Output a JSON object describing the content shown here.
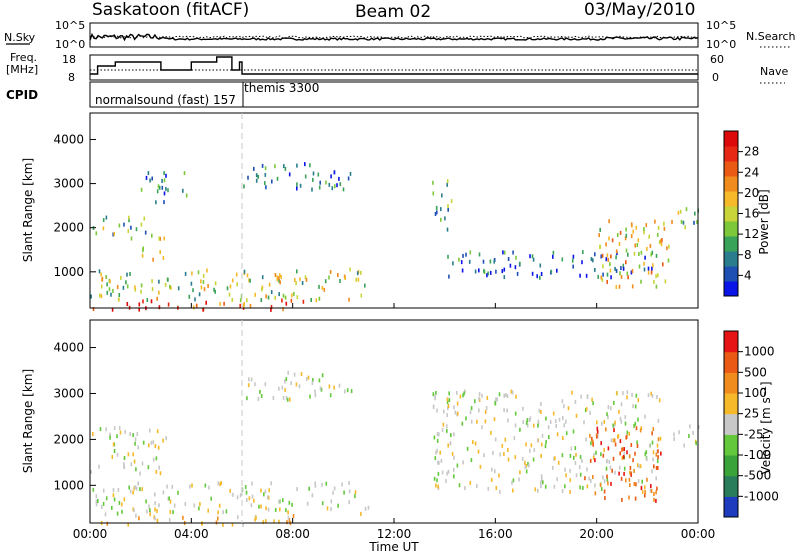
{
  "header": {
    "title": "Saskatoon (fitACF)",
    "beam": "Beam 02",
    "date": "03/May/2010"
  },
  "top_panels": {
    "nsky_label": "N.Sky",
    "nsky_ticks": [
      "10^5",
      "10^0"
    ],
    "nsky_right_ticks": [
      "10^5",
      "10^0"
    ],
    "nsearch_label": "N.Search",
    "freq_label_1": "Freq.",
    "freq_label_2": "[MHz]",
    "freq_ticks": [
      "18",
      "8"
    ],
    "nave_ticks": [
      "60",
      "0"
    ],
    "nave_label": "Nave",
    "cpid_label": "CPID",
    "cpid_mode_1": "normalsound (fast) 157",
    "cpid_mode_2": "themis 3300"
  },
  "chart_data": [
    {
      "type": "heatmap",
      "title": "",
      "quantity": "Power",
      "ylabel": "Slant Range [km]",
      "xlabel": "Time UT",
      "ylim": [
        180,
        4600
      ],
      "y_ticks": [
        "1000",
        "2000",
        "3000",
        "4000"
      ],
      "x_ticks": [
        "00:00",
        "04:00",
        "08:00",
        "12:00",
        "16:00",
        "20:00",
        "00:00"
      ],
      "colorbar": {
        "label": "Power [dB]",
        "tick_labels": [
          "4",
          "8",
          "12",
          "16",
          "20",
          "24",
          "28"
        ],
        "colors": [
          "#0a14e6",
          "#1e50b4",
          "#2a7d8c",
          "#3aa35a",
          "#7cc83a",
          "#c8d43a",
          "#f5b92a",
          "#f08c1e",
          "#eb5a14",
          "#e62814",
          "#dc0a0a"
        ]
      },
      "echo_regions": [
        {
          "t": [
            0.0,
            2.8
          ],
          "range_km": [
            180,
            400
          ],
          "level": 0.9
        },
        {
          "t": [
            2.8,
            8.5
          ],
          "range_km": [
            180,
            400
          ],
          "level": 0.8
        },
        {
          "t": [
            0.0,
            11.0
          ],
          "range_km": [
            400,
            1100
          ],
          "level": 0.45
        },
        {
          "t": [
            0.0,
            2.2
          ],
          "range_km": [
            1800,
            2300
          ],
          "level": 0.35
        },
        {
          "t": [
            2.0,
            3.0
          ],
          "range_km": [
            1300,
            1900
          ],
          "level": 0.6
        },
        {
          "t": [
            2.0,
            3.8
          ],
          "range_km": [
            2600,
            3300
          ],
          "level": 0.2
        },
        {
          "t": [
            6.0,
            10.3
          ],
          "range_km": [
            2900,
            3500
          ],
          "level": 0.15
        },
        {
          "t": [
            13.5,
            14.3
          ],
          "range_km": [
            2000,
            3100
          ],
          "level": 0.3
        },
        {
          "t": [
            14.0,
            22.5
          ],
          "range_km": [
            900,
            1500
          ],
          "level": 0.15
        },
        {
          "t": [
            20.0,
            23.0
          ],
          "range_km": [
            700,
            2200
          ],
          "level": 0.55
        },
        {
          "t": [
            23.0,
            24.0
          ],
          "range_km": [
            1900,
            2500
          ],
          "level": 0.35
        }
      ]
    },
    {
      "type": "heatmap",
      "title": "",
      "quantity": "Velocity",
      "ylabel": "Slant Range [km]",
      "xlabel": "Time UT",
      "ylim": [
        180,
        4600
      ],
      "y_ticks": [
        "1000",
        "2000",
        "3000",
        "4000"
      ],
      "x_ticks": [
        "00:00",
        "04:00",
        "08:00",
        "12:00",
        "16:00",
        "20:00",
        "00:00"
      ],
      "colorbar": {
        "label": "Velocity [m s⁻¹]",
        "tick_labels": [
          "1000",
          "500",
          "100",
          "25",
          "-25",
          "-100",
          "-500",
          "-1000"
        ],
        "colors": [
          "#1e3cbe",
          "#2a7d5a",
          "#3aa33a",
          "#64c83c",
          "#c8c8c8",
          "#f5b92a",
          "#f08c1e",
          "#eb5a14",
          "#e61414"
        ]
      },
      "echo_regions": [
        {
          "t": [
            0.0,
            8.5
          ],
          "range_km": [
            180,
            400
          ],
          "velocity_ms": -100
        },
        {
          "t": [
            0.0,
            11.0
          ],
          "range_km": [
            400,
            1100
          ],
          "velocity_ms": 25
        },
        {
          "t": [
            0.0,
            3.0
          ],
          "range_km": [
            1300,
            2300
          ],
          "velocity_ms": 0
        },
        {
          "t": [
            6.0,
            10.3
          ],
          "range_km": [
            2900,
            3500
          ],
          "velocity_ms": 0
        },
        {
          "t": [
            13.5,
            22.5
          ],
          "range_km": [
            900,
            3100
          ],
          "velocity_ms": 0
        },
        {
          "t": [
            19.5,
            22.5
          ],
          "range_km": [
            700,
            2300
          ],
          "velocity_ms": -500
        },
        {
          "t": [
            23.0,
            24.0
          ],
          "range_km": [
            1900,
            2500
          ],
          "velocity_ms": 0
        }
      ]
    }
  ],
  "colors": {
    "frame": "#000000",
    "dashed_marker": "#c8c8c8"
  }
}
